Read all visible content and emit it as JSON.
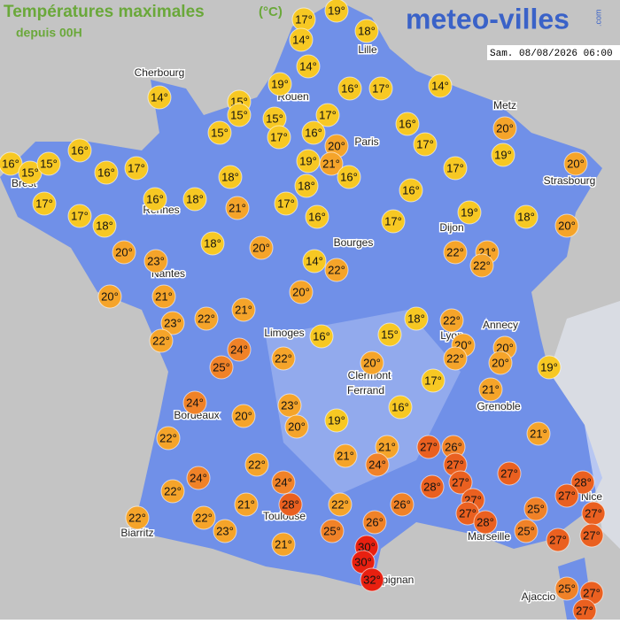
{
  "header": {
    "title": "Températures maximales",
    "unit": "(°C)",
    "subtitle": "depuis 00H",
    "logo": "meteo-villes",
    "logo_suffix": ".com",
    "timestamp": "Sam. 08/08/2026 06:00"
  },
  "cities": [
    "Cherbourg",
    "Lille",
    "Rouen",
    "Metz",
    "Paris",
    "Brest",
    "Strasbourg",
    "Rennes",
    "Dijon",
    "Bourges",
    "Nantes",
    "Annecy",
    "Limoges",
    "Lyon",
    "Clermont",
    "Ferrand",
    "Grenoble",
    "Bordeaux",
    "Biarritz",
    "Toulouse",
    "Marseille",
    "Nice",
    "Perpignan",
    "Ajaccio"
  ],
  "temperatures": [
    "17°",
    "19°",
    "14°",
    "18°",
    "14°",
    "14°",
    "19°",
    "15°",
    "15°",
    "15°",
    "17°",
    "16°",
    "17°",
    "14°",
    "15°",
    "17°",
    "16°",
    "20°",
    "16°",
    "17°",
    "20°",
    "19°",
    "20°",
    "16°",
    "15°",
    "15°",
    "16°",
    "16°",
    "17°",
    "19°",
    "21°",
    "16°",
    "17°",
    "17°",
    "17°",
    "18°",
    "16°",
    "18°",
    "18°",
    "21°",
    "17°",
    "18°",
    "16°",
    "16°",
    "17°",
    "19°",
    "18°",
    "20°",
    "20°",
    "23°",
    "18°",
    "20°",
    "14°",
    "22°",
    "22°",
    "21°",
    "22°",
    "20°",
    "21°",
    "23°",
    "22°",
    "22°",
    "21°",
    "20°",
    "16°",
    "15°",
    "18°",
    "22°",
    "20°",
    "22°",
    "20°",
    "20°",
    "19°",
    "24°",
    "25°",
    "22°",
    "20°",
    "17°",
    "21°",
    "24°",
    "20°",
    "23°",
    "20°",
    "19°",
    "16°",
    "22°",
    "21°",
    "21°",
    "24°",
    "27°",
    "26°",
    "27°",
    "27°",
    "21°",
    "22°",
    "24°",
    "24°",
    "22°",
    "28°",
    "27°",
    "28°",
    "27°",
    "27°",
    "22°",
    "26°",
    "27°",
    "27°",
    "28°",
    "25°",
    "28°",
    "21°",
    "22°",
    "22°",
    "23°",
    "26°",
    "25°",
    "25°",
    "27°",
    "27°",
    "21°",
    "30°",
    "30°",
    "32°",
    "25°",
    "27°",
    "27°"
  ]
}
